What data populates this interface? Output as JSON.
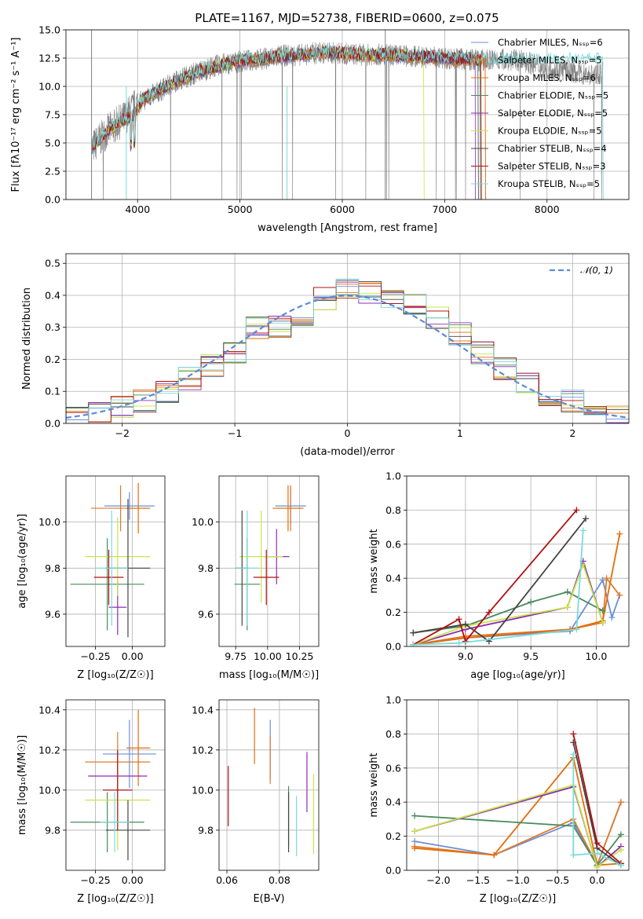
{
  "colors": [
    "#6b8fd8",
    "#e07b2a",
    "#e46c0a",
    "#4a8a5c",
    "#8e2cb0",
    "#c8e44a",
    "#444444",
    "#b01010",
    "#7adbdb"
  ],
  "chart_data": [
    {
      "id": "spectrum",
      "type": "line",
      "title": "PLATE=1167, MJD=52738, FIBERID=0600, z=0.075",
      "xlabel": "wavelength [Angstrom, rest frame]",
      "ylabel": "Flux [fλ10⁻¹⁷ erg cm⁻² s⁻¹ A⁻¹]",
      "xlim": [
        3300,
        8800
      ],
      "ylim": [
        0,
        15
      ],
      "xticks": [
        "4000",
        "5000",
        "6000",
        "7000",
        "8000"
      ],
      "yticks": [
        "0.0",
        "2.5",
        "5.0",
        "7.5",
        "10.0",
        "12.5",
        "15.0"
      ],
      "legend": [
        "Chabrier MILES, Nₛₛₚ=6",
        "Salpeter MILES, Nₛₛₚ=5",
        "Kroupa MILES, Nₛₛₚ=6",
        "Chabrier ELODIE, Nₛₛₚ=5",
        "Salpeter ELODIE, Nₛₛₚ=5",
        "Kroupa ELODIE, Nₛₛₚ=5",
        "Chabrier STELIB, Nₛₛₚ=4",
        "Salpeter STELIB, Nₛₛₚ=3",
        "Kroupa STELIB, Nₛₛₚ=5"
      ],
      "legend_position": "upper right",
      "model_continuum": {
        "x": [
          3550,
          3700,
          3850,
          3950,
          4050,
          4200,
          4400,
          4600,
          4800,
          5000,
          5200,
          5400,
          5600,
          5800,
          6000,
          6200,
          6400,
          6600,
          6800,
          7000,
          7200,
          7400
        ],
        "y": [
          4.5,
          6.0,
          7.0,
          7.3,
          8.8,
          9.6,
          10.5,
          11.3,
          11.8,
          12.3,
          12.4,
          12.6,
          12.8,
          13.0,
          12.9,
          12.8,
          12.8,
          12.7,
          12.6,
          12.5,
          12.4,
          12.3
        ]
      },
      "data_spectrum": {
        "x": [
          3550,
          3700,
          3850,
          4000,
          4200,
          4400,
          4600,
          4800,
          5000,
          5200,
          5400,
          5600,
          5800,
          6000,
          6200,
          6400,
          6600,
          6800,
          7000,
          7200,
          7400,
          7600,
          7800,
          8000,
          8200,
          8400,
          8550
        ],
        "y": [
          4.5,
          6.0,
          7.0,
          8.5,
          9.5,
          10.6,
          11.3,
          11.9,
          12.2,
          12.4,
          12.7,
          12.8,
          13.0,
          12.9,
          12.8,
          12.8,
          12.7,
          12.6,
          12.5,
          12.4,
          12.3,
          12.4,
          12.2,
          11.5,
          11.4,
          11.0,
          11.2
        ]
      }
    },
    {
      "id": "residual-histogram",
      "type": "line",
      "xlabel": "(data-model)/error",
      "ylabel": "Normed distribution",
      "xlim": [
        -2.5,
        2.5
      ],
      "ylim": [
        0,
        0.53
      ],
      "xticks": [
        "−2",
        "−1",
        "0",
        "1",
        "2"
      ],
      "yticks": [
        "0.0",
        "0.1",
        "0.2",
        "0.3",
        "0.4",
        "0.5"
      ],
      "legend": [
        "𝒩(0, 1)"
      ],
      "legend_position": "upper right",
      "bin_centers": [
        -2.4,
        -2.2,
        -2.0,
        -1.8,
        -1.6,
        -1.4,
        -1.2,
        -1.0,
        -0.8,
        -0.6,
        -0.4,
        -0.2,
        0.0,
        0.2,
        0.4,
        0.6,
        0.8,
        1.0,
        1.2,
        1.4,
        1.6,
        1.8,
        2.0,
        2.2,
        2.4
      ],
      "histogram_values": [
        0.02,
        0.03,
        0.05,
        0.07,
        0.1,
        0.14,
        0.18,
        0.22,
        0.3,
        0.3,
        0.34,
        0.39,
        0.42,
        0.41,
        0.38,
        0.37,
        0.33,
        0.28,
        0.22,
        0.17,
        0.13,
        0.09,
        0.07,
        0.04,
        0.02
      ]
    },
    {
      "id": "age-vs-metallicity",
      "type": "scatter",
      "xlabel": "Z [log₁₀(Z/Z☉)]",
      "ylabel": "age  [log₁₀(age/yr)]",
      "xlim": [
        -0.45,
        0.22
      ],
      "ylim": [
        9.46,
        10.2
      ],
      "xticks": [
        "−0.25",
        "0.00"
      ],
      "yticks": [
        "9.6",
        "9.8",
        "10.0"
      ],
      "points": [
        {
          "x": -0.02,
          "y": 10.07,
          "xerr": 0.17,
          "yerr": 0.06
        },
        {
          "x": -0.08,
          "y": 10.06,
          "xerr": 0.2,
          "yerr": 0.1
        },
        {
          "x": 0.04,
          "y": 10.06,
          "xerr": 0.08,
          "yerr": 0.11
        },
        {
          "x": -0.17,
          "y": 9.73,
          "xerr": 0.25,
          "yerr": 0.2
        },
        {
          "x": -0.1,
          "y": 9.63,
          "xerr": 0.06,
          "yerr": 0.12
        },
        {
          "x": -0.1,
          "y": 9.85,
          "xerr": 0.22,
          "yerr": 0.17
        },
        {
          "x": -0.03,
          "y": 9.8,
          "xerr": 0.15,
          "yerr": 0.3
        },
        {
          "x": -0.16,
          "y": 9.76,
          "xerr": 0.1,
          "yerr": 0.12
        },
        {
          "x": -0.14,
          "y": 9.8,
          "xerr": 0.11,
          "yerr": 0.25
        }
      ]
    },
    {
      "id": "age-vs-mass",
      "type": "scatter",
      "xlabel": "mass [log₁₀(M/M☉)]",
      "ylabel": "",
      "xlim": [
        9.62,
        10.4
      ],
      "ylim": [
        9.46,
        10.2
      ],
      "xticks": [
        "9.75",
        "10.00",
        "10.25"
      ],
      "yticks": [
        "9.6",
        "9.8",
        "10.0"
      ],
      "points": [
        {
          "x": 10.18,
          "y": 10.07,
          "xerr": 0.12,
          "yerr": 0.08
        },
        {
          "x": 10.18,
          "y": 10.06,
          "xerr": 0.1,
          "yerr": 0.1
        },
        {
          "x": 10.16,
          "y": 10.06,
          "xerr": 0.12,
          "yerr": 0.1
        },
        {
          "x": 9.84,
          "y": 9.73,
          "xerr": 0.1,
          "yerr": 0.2
        },
        {
          "x": 10.07,
          "y": 9.85,
          "xerr": 0.1,
          "yerr": 0.12
        },
        {
          "x": 9.95,
          "y": 9.85,
          "xerr": 0.17,
          "yerr": 0.2
        },
        {
          "x": 9.8,
          "y": 9.8,
          "xerr": 0.05,
          "yerr": 0.25
        },
        {
          "x": 9.99,
          "y": 9.76,
          "xerr": 0.1,
          "yerr": 0.12
        },
        {
          "x": 9.84,
          "y": 9.8,
          "xerr": 0.09,
          "yerr": 0.25
        }
      ]
    },
    {
      "id": "mass-weight-vs-age",
      "type": "line",
      "xlabel": "age  [log₁₀(age/yr)]",
      "ylabel": "mass weight",
      "xlim": [
        8.55,
        10.25
      ],
      "ylim": [
        0,
        1.0
      ],
      "xticks": [
        "9.0",
        "9.5",
        "10.0"
      ],
      "yticks": [
        "0.0",
        "0.2",
        "0.4",
        "0.6",
        "0.8",
        "1.0"
      ],
      "series": [
        {
          "x": [
            8.6,
            9.0,
            9.8,
            10.05,
            10.12,
            10.18
          ],
          "y": [
            0.01,
            0.05,
            0.09,
            0.39,
            0.17,
            0.3
          ]
        },
        {
          "x": [
            8.6,
            9.0,
            9.8,
            10.05,
            10.08,
            10.18
          ],
          "y": [
            0.01,
            0.06,
            0.1,
            0.14,
            0.4,
            0.3
          ]
        },
        {
          "x": [
            8.6,
            9.0,
            9.8,
            10.05,
            10.18
          ],
          "y": [
            0.01,
            0.05,
            0.1,
            0.15,
            0.66
          ]
        },
        {
          "x": [
            8.6,
            9.0,
            9.5,
            9.78,
            10.05
          ],
          "y": [
            0.08,
            0.12,
            0.26,
            0.32,
            0.21
          ]
        },
        {
          "x": [
            8.6,
            9.0,
            9.78,
            9.9,
            10.05
          ],
          "y": [
            0.01,
            0.1,
            0.23,
            0.5,
            0.14
          ]
        },
        {
          "x": [
            8.6,
            9.0,
            9.78,
            9.9,
            10.05
          ],
          "y": [
            0.01,
            0.12,
            0.23,
            0.48,
            0.14
          ]
        },
        {
          "x": [
            8.6,
            9.0,
            9.18,
            9.92
          ],
          "y": [
            0.08,
            0.13,
            0.03,
            0.75
          ]
        },
        {
          "x": [
            8.6,
            8.95,
            9.0,
            9.18,
            9.85
          ],
          "y": [
            0.01,
            0.16,
            0.03,
            0.2,
            0.8
          ]
        },
        {
          "x": [
            8.6,
            8.95,
            9.85,
            9.9
          ],
          "y": [
            0.01,
            0.02,
            0.1,
            0.68
          ]
        }
      ]
    },
    {
      "id": "mass-vs-metallicity",
      "type": "scatter",
      "xlabel": "Z [log₁₀(Z/Z☉)]",
      "ylabel": "mass [log₁₀(M/M☉)]",
      "xlim": [
        -0.45,
        0.22
      ],
      "ylim": [
        9.6,
        10.45
      ],
      "xticks": [
        "−0.25",
        "0.00"
      ],
      "yticks": [
        "9.8",
        "10.0",
        "10.2",
        "10.4"
      ],
      "points": [
        {
          "x": -0.02,
          "y": 10.18,
          "xerr": 0.18,
          "yerr": 0.17
        },
        {
          "x": -0.1,
          "y": 10.14,
          "xerr": 0.22,
          "yerr": 0.15
        },
        {
          "x": 0.04,
          "y": 10.21,
          "xerr": 0.08,
          "yerr": 0.19
        },
        {
          "x": -0.17,
          "y": 9.84,
          "xerr": 0.25,
          "yerr": 0.15
        },
        {
          "x": -0.1,
          "y": 10.07,
          "xerr": 0.2,
          "yerr": 0.12
        },
        {
          "x": -0.1,
          "y": 9.95,
          "xerr": 0.22,
          "yerr": 0.25
        },
        {
          "x": -0.03,
          "y": 9.8,
          "xerr": 0.15,
          "yerr": 0.15
        },
        {
          "x": -0.1,
          "y": 10.0,
          "xerr": 0.1,
          "yerr": 0.2
        },
        {
          "x": -0.12,
          "y": 9.84,
          "xerr": 0.1,
          "yerr": 0.15
        }
      ]
    },
    {
      "id": "mass-vs-extinction",
      "type": "scatter",
      "xlabel": "E(B-V)",
      "ylabel": "",
      "xlim": [
        0.057,
        0.095
      ],
      "ylim": [
        9.6,
        10.45
      ],
      "xticks": [
        "0.06",
        "0.08"
      ],
      "yticks": [
        "9.8",
        "10.0",
        "10.2",
        "10.4"
      ],
      "points": [
        {
          "x": 0.0765,
          "y": 10.2,
          "yerr": 0.15
        },
        {
          "x": 0.0765,
          "y": 10.15,
          "yerr": 0.12
        },
        {
          "x": 0.0705,
          "y": 10.27,
          "yerr": 0.14
        },
        {
          "x": 0.0835,
          "y": 9.87,
          "yerr": 0.15
        },
        {
          "x": 0.0905,
          "y": 10.04,
          "yerr": 0.15
        },
        {
          "x": 0.093,
          "y": 9.88,
          "yerr": 0.2
        },
        {
          "x": 0.0835,
          "y": 9.84,
          "yerr": 0.15
        },
        {
          "x": 0.0605,
          "y": 9.97,
          "yerr": 0.15
        },
        {
          "x": 0.0865,
          "y": 9.82,
          "yerr": 0.15
        }
      ]
    },
    {
      "id": "mass-weight-vs-metallicity",
      "type": "line",
      "xlabel": "Z [log₁₀(Z/Z☉)]",
      "ylabel": "mass weight",
      "xlim": [
        -2.4,
        0.4
      ],
      "ylim": [
        0,
        1.0
      ],
      "xticks": [
        "−2.0",
        "−1.5",
        "−1.0",
        "−0.5",
        "0.0"
      ],
      "yticks": [
        "0.0",
        "0.2",
        "0.4",
        "0.6",
        "0.8",
        "1.0"
      ],
      "series": [
        {
          "x": [
            -2.3,
            -1.3,
            -0.3,
            0.0,
            0.3
          ],
          "y": [
            0.17,
            0.09,
            0.28,
            0.03,
            0.4
          ]
        },
        {
          "x": [
            -2.3,
            -1.3,
            -0.3,
            0.0,
            0.3
          ],
          "y": [
            0.14,
            0.09,
            0.3,
            0.03,
            0.4
          ]
        },
        {
          "x": [
            -2.3,
            -1.3,
            -0.3,
            0.0,
            0.3
          ],
          "y": [
            0.13,
            0.09,
            0.66,
            0.03,
            0.04
          ]
        },
        {
          "x": [
            -2.3,
            -0.3,
            0.0,
            0.3
          ],
          "y": [
            0.32,
            0.26,
            0.03,
            0.21
          ]
        },
        {
          "x": [
            -2.3,
            -0.3,
            0.0,
            0.3
          ],
          "y": [
            0.23,
            0.49,
            0.02,
            0.14
          ]
        },
        {
          "x": [
            -2.3,
            -0.3,
            0.0,
            0.3
          ],
          "y": [
            0.23,
            0.5,
            0.02,
            0.12
          ]
        },
        {
          "x": [
            -0.3,
            0.0,
            0.3
          ],
          "y": [
            0.75,
            0.13,
            0.03
          ]
        },
        {
          "x": [
            -0.3,
            0.0,
            0.3
          ],
          "y": [
            0.8,
            0.16,
            0.04
          ]
        },
        {
          "x": [
            -0.3,
            -0.3,
            0.0,
            0.3
          ],
          "y": [
            0.68,
            0.09,
            0.1,
            0.03
          ]
        }
      ]
    }
  ]
}
